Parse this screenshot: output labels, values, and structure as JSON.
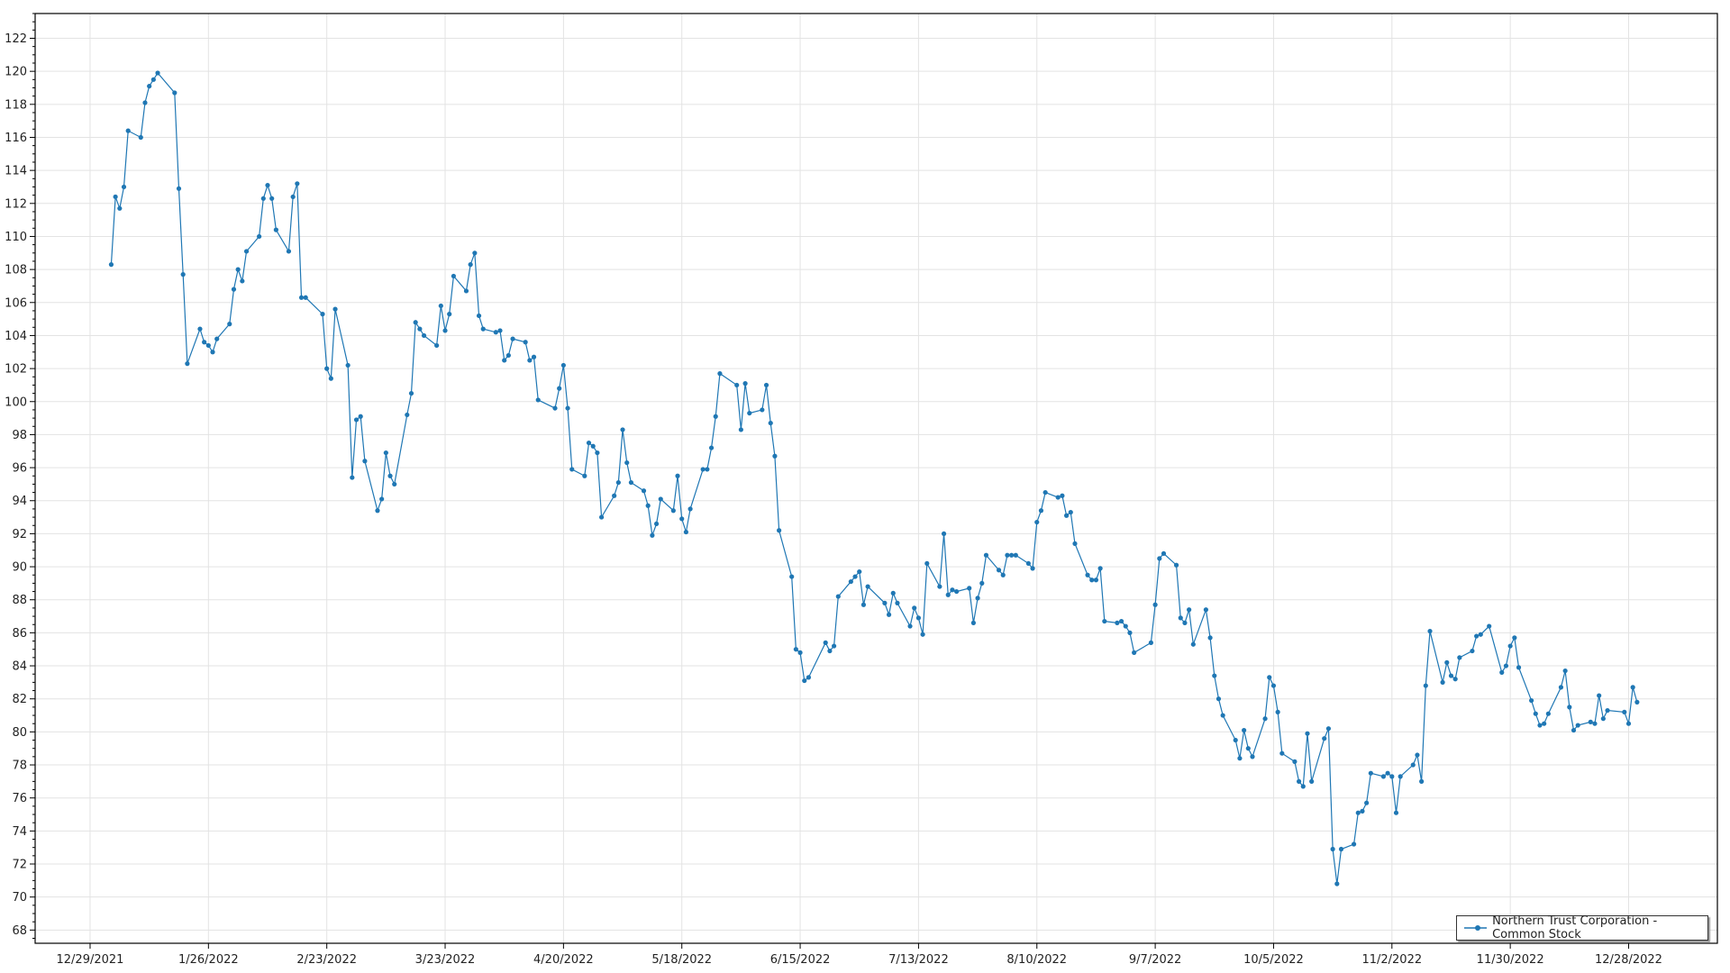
{
  "chart_data": {
    "type": "line",
    "title": "",
    "xlabel": "",
    "ylabel": "",
    "xlim": [
      "2021-12-16",
      "2023-01-18"
    ],
    "ylim": [
      67.2,
      123.5
    ],
    "x_ticks": [
      "12/29/2021",
      "1/26/2022",
      "2/23/2022",
      "3/23/2022",
      "4/20/2022",
      "5/18/2022",
      "6/15/2022",
      "7/13/2022",
      "8/10/2022",
      "9/7/2022",
      "10/5/2022",
      "11/2/2022",
      "11/30/2022",
      "12/28/2022"
    ],
    "y_ticks": [
      68,
      70,
      72,
      74,
      76,
      78,
      80,
      82,
      84,
      86,
      88,
      90,
      92,
      94,
      96,
      98,
      100,
      102,
      104,
      106,
      108,
      110,
      112,
      114,
      116,
      118,
      120,
      122
    ],
    "grid": true,
    "legend_position": "bottom-right",
    "colors": {
      "series": "#1f77b4",
      "grid": "#e3e3e3",
      "axis": "#000000"
    },
    "series": [
      {
        "name": "Northern Trust Corporation - Common Stock",
        "marker": "circle",
        "points": [
          [
            "2022-01-03",
            108.3
          ],
          [
            "2022-01-04",
            112.4
          ],
          [
            "2022-01-05",
            111.7
          ],
          [
            "2022-01-06",
            113.0
          ],
          [
            "2022-01-07",
            116.4
          ],
          [
            "2022-01-10",
            116.0
          ],
          [
            "2022-01-11",
            118.1
          ],
          [
            "2022-01-12",
            119.1
          ],
          [
            "2022-01-13",
            119.5
          ],
          [
            "2022-01-14",
            119.9
          ],
          [
            "2022-01-18",
            118.7
          ],
          [
            "2022-01-19",
            112.9
          ],
          [
            "2022-01-20",
            107.7
          ],
          [
            "2022-01-21",
            102.3
          ],
          [
            "2022-01-24",
            104.4
          ],
          [
            "2022-01-25",
            103.6
          ],
          [
            "2022-01-26",
            103.4
          ],
          [
            "2022-01-27",
            103.0
          ],
          [
            "2022-01-28",
            103.8
          ],
          [
            "2022-01-31",
            104.7
          ],
          [
            "2022-02-01",
            106.8
          ],
          [
            "2022-02-02",
            108.0
          ],
          [
            "2022-02-03",
            107.3
          ],
          [
            "2022-02-04",
            109.1
          ],
          [
            "2022-02-07",
            110.0
          ],
          [
            "2022-02-08",
            112.3
          ],
          [
            "2022-02-09",
            113.1
          ],
          [
            "2022-02-10",
            112.3
          ],
          [
            "2022-02-11",
            110.4
          ],
          [
            "2022-02-14",
            109.1
          ],
          [
            "2022-02-15",
            112.4
          ],
          [
            "2022-02-16",
            113.2
          ],
          [
            "2022-02-17",
            106.3
          ],
          [
            "2022-02-18",
            106.3
          ],
          [
            "2022-02-22",
            105.3
          ],
          [
            "2022-02-23",
            102.0
          ],
          [
            "2022-02-24",
            101.4
          ],
          [
            "2022-02-25",
            105.6
          ],
          [
            "2022-02-28",
            102.2
          ],
          [
            "2022-03-01",
            95.4
          ],
          [
            "2022-03-02",
            98.9
          ],
          [
            "2022-03-03",
            99.1
          ],
          [
            "2022-03-04",
            96.4
          ],
          [
            "2022-03-07",
            93.4
          ],
          [
            "2022-03-08",
            94.1
          ],
          [
            "2022-03-09",
            96.9
          ],
          [
            "2022-03-10",
            95.5
          ],
          [
            "2022-03-11",
            95.0
          ],
          [
            "2022-03-14",
            99.2
          ],
          [
            "2022-03-15",
            100.5
          ],
          [
            "2022-03-16",
            104.8
          ],
          [
            "2022-03-17",
            104.4
          ],
          [
            "2022-03-18",
            104.0
          ],
          [
            "2022-03-21",
            103.4
          ],
          [
            "2022-03-22",
            105.8
          ],
          [
            "2022-03-23",
            104.3
          ],
          [
            "2022-03-24",
            105.3
          ],
          [
            "2022-03-25",
            107.6
          ],
          [
            "2022-03-28",
            106.7
          ],
          [
            "2022-03-29",
            108.3
          ],
          [
            "2022-03-30",
            109.0
          ],
          [
            "2022-03-31",
            105.2
          ],
          [
            "2022-04-01",
            104.4
          ],
          [
            "2022-04-04",
            104.2
          ],
          [
            "2022-04-05",
            104.3
          ],
          [
            "2022-04-06",
            102.5
          ],
          [
            "2022-04-07",
            102.8
          ],
          [
            "2022-04-08",
            103.8
          ],
          [
            "2022-04-11",
            103.6
          ],
          [
            "2022-04-12",
            102.5
          ],
          [
            "2022-04-13",
            102.7
          ],
          [
            "2022-04-14",
            100.1
          ],
          [
            "2022-04-18",
            99.6
          ],
          [
            "2022-04-19",
            100.8
          ],
          [
            "2022-04-20",
            102.2
          ],
          [
            "2022-04-21",
            99.6
          ],
          [
            "2022-04-22",
            95.9
          ],
          [
            "2022-04-25",
            95.5
          ],
          [
            "2022-04-26",
            97.5
          ],
          [
            "2022-04-27",
            97.3
          ],
          [
            "2022-04-28",
            96.9
          ],
          [
            "2022-04-29",
            93.0
          ],
          [
            "2022-05-02",
            94.3
          ],
          [
            "2022-05-03",
            95.1
          ],
          [
            "2022-05-04",
            98.3
          ],
          [
            "2022-05-05",
            96.3
          ],
          [
            "2022-05-06",
            95.1
          ],
          [
            "2022-05-09",
            94.6
          ],
          [
            "2022-05-10",
            93.7
          ],
          [
            "2022-05-11",
            91.9
          ],
          [
            "2022-05-12",
            92.6
          ],
          [
            "2022-05-13",
            94.1
          ],
          [
            "2022-05-16",
            93.4
          ],
          [
            "2022-05-17",
            95.5
          ],
          [
            "2022-05-18",
            92.9
          ],
          [
            "2022-05-19",
            92.1
          ],
          [
            "2022-05-20",
            93.5
          ],
          [
            "2022-05-23",
            95.9
          ],
          [
            "2022-05-24",
            95.9
          ],
          [
            "2022-05-25",
            97.2
          ],
          [
            "2022-05-26",
            99.1
          ],
          [
            "2022-05-27",
            101.7
          ],
          [
            "2022-05-31",
            101.0
          ],
          [
            "2022-06-01",
            98.3
          ],
          [
            "2022-06-02",
            101.1
          ],
          [
            "2022-06-03",
            99.3
          ],
          [
            "2022-06-06",
            99.5
          ],
          [
            "2022-06-07",
            101.0
          ],
          [
            "2022-06-08",
            98.7
          ],
          [
            "2022-06-09",
            96.7
          ],
          [
            "2022-06-10",
            92.2
          ],
          [
            "2022-06-13",
            89.4
          ],
          [
            "2022-06-14",
            85.0
          ],
          [
            "2022-06-15",
            84.8
          ],
          [
            "2022-06-16",
            83.1
          ],
          [
            "2022-06-17",
            83.3
          ],
          [
            "2022-06-21",
            85.4
          ],
          [
            "2022-06-22",
            84.9
          ],
          [
            "2022-06-23",
            85.2
          ],
          [
            "2022-06-24",
            88.2
          ],
          [
            "2022-06-27",
            89.1
          ],
          [
            "2022-06-28",
            89.4
          ],
          [
            "2022-06-29",
            89.7
          ],
          [
            "2022-06-30",
            87.7
          ],
          [
            "2022-07-01",
            88.8
          ],
          [
            "2022-07-05",
            87.8
          ],
          [
            "2022-07-06",
            87.1
          ],
          [
            "2022-07-07",
            88.4
          ],
          [
            "2022-07-08",
            87.8
          ],
          [
            "2022-07-11",
            86.4
          ],
          [
            "2022-07-12",
            87.5
          ],
          [
            "2022-07-13",
            86.9
          ],
          [
            "2022-07-14",
            85.9
          ],
          [
            "2022-07-15",
            90.2
          ],
          [
            "2022-07-18",
            88.8
          ],
          [
            "2022-07-19",
            92.0
          ],
          [
            "2022-07-20",
            88.3
          ],
          [
            "2022-07-21",
            88.6
          ],
          [
            "2022-07-22",
            88.5
          ],
          [
            "2022-07-25",
            88.7
          ],
          [
            "2022-07-26",
            86.6
          ],
          [
            "2022-07-27",
            88.1
          ],
          [
            "2022-07-28",
            89.0
          ],
          [
            "2022-07-29",
            90.7
          ],
          [
            "2022-08-01",
            89.8
          ],
          [
            "2022-08-02",
            89.5
          ],
          [
            "2022-08-03",
            90.7
          ],
          [
            "2022-08-04",
            90.7
          ],
          [
            "2022-08-05",
            90.7
          ],
          [
            "2022-08-08",
            90.2
          ],
          [
            "2022-08-09",
            89.9
          ],
          [
            "2022-08-10",
            92.7
          ],
          [
            "2022-08-11",
            93.4
          ],
          [
            "2022-08-12",
            94.5
          ],
          [
            "2022-08-15",
            94.2
          ],
          [
            "2022-08-16",
            94.3
          ],
          [
            "2022-08-17",
            93.1
          ],
          [
            "2022-08-18",
            93.3
          ],
          [
            "2022-08-19",
            91.4
          ],
          [
            "2022-08-22",
            89.5
          ],
          [
            "2022-08-23",
            89.2
          ],
          [
            "2022-08-24",
            89.2
          ],
          [
            "2022-08-25",
            89.9
          ],
          [
            "2022-08-26",
            86.7
          ],
          [
            "2022-08-29",
            86.6
          ],
          [
            "2022-08-30",
            86.7
          ],
          [
            "2022-08-31",
            86.4
          ],
          [
            "2022-09-01",
            86.0
          ],
          [
            "2022-09-02",
            84.8
          ],
          [
            "2022-09-06",
            85.4
          ],
          [
            "2022-09-07",
            87.7
          ],
          [
            "2022-09-08",
            90.5
          ],
          [
            "2022-09-09",
            90.8
          ],
          [
            "2022-09-12",
            90.1
          ],
          [
            "2022-09-13",
            86.9
          ],
          [
            "2022-09-14",
            86.6
          ],
          [
            "2022-09-15",
            87.4
          ],
          [
            "2022-09-16",
            85.3
          ],
          [
            "2022-09-19",
            87.4
          ],
          [
            "2022-09-20",
            85.7
          ],
          [
            "2022-09-21",
            83.4
          ],
          [
            "2022-09-22",
            82.0
          ],
          [
            "2022-09-23",
            81.0
          ],
          [
            "2022-09-26",
            79.5
          ],
          [
            "2022-09-27",
            78.4
          ],
          [
            "2022-09-28",
            80.1
          ],
          [
            "2022-09-29",
            79.0
          ],
          [
            "2022-09-30",
            78.5
          ],
          [
            "2022-10-03",
            80.8
          ],
          [
            "2022-10-04",
            83.3
          ],
          [
            "2022-10-05",
            82.8
          ],
          [
            "2022-10-06",
            81.2
          ],
          [
            "2022-10-07",
            78.7
          ],
          [
            "2022-10-10",
            78.2
          ],
          [
            "2022-10-11",
            77.0
          ],
          [
            "2022-10-12",
            76.7
          ],
          [
            "2022-10-13",
            79.9
          ],
          [
            "2022-10-14",
            77.0
          ],
          [
            "2022-10-17",
            79.6
          ],
          [
            "2022-10-18",
            80.2
          ],
          [
            "2022-10-19",
            72.9
          ],
          [
            "2022-10-20",
            70.8
          ],
          [
            "2022-10-21",
            72.9
          ],
          [
            "2022-10-24",
            73.2
          ],
          [
            "2022-10-25",
            75.1
          ],
          [
            "2022-10-26",
            75.2
          ],
          [
            "2022-10-27",
            75.7
          ],
          [
            "2022-10-28",
            77.5
          ],
          [
            "2022-10-31",
            77.3
          ],
          [
            "2022-11-01",
            77.5
          ],
          [
            "2022-11-02",
            77.3
          ],
          [
            "2022-11-03",
            75.1
          ],
          [
            "2022-11-04",
            77.3
          ],
          [
            "2022-11-07",
            78.0
          ],
          [
            "2022-11-08",
            78.6
          ],
          [
            "2022-11-09",
            77.0
          ],
          [
            "2022-11-10",
            82.8
          ],
          [
            "2022-11-11",
            86.1
          ],
          [
            "2022-11-14",
            83.0
          ],
          [
            "2022-11-15",
            84.2
          ],
          [
            "2022-11-16",
            83.4
          ],
          [
            "2022-11-17",
            83.2
          ],
          [
            "2022-11-18",
            84.5
          ],
          [
            "2022-11-21",
            84.9
          ],
          [
            "2022-11-22",
            85.8
          ],
          [
            "2022-11-23",
            85.9
          ],
          [
            "2022-11-25",
            86.4
          ],
          [
            "2022-11-28",
            83.6
          ],
          [
            "2022-11-29",
            84.0
          ],
          [
            "2022-11-30",
            85.2
          ],
          [
            "2022-12-01",
            85.7
          ],
          [
            "2022-12-02",
            83.9
          ],
          [
            "2022-12-05",
            81.9
          ],
          [
            "2022-12-06",
            81.1
          ],
          [
            "2022-12-07",
            80.4
          ],
          [
            "2022-12-08",
            80.5
          ],
          [
            "2022-12-09",
            81.1
          ],
          [
            "2022-12-12",
            82.7
          ],
          [
            "2022-12-13",
            83.7
          ],
          [
            "2022-12-14",
            81.5
          ],
          [
            "2022-12-15",
            80.1
          ],
          [
            "2022-12-16",
            80.4
          ],
          [
            "2022-12-19",
            80.6
          ],
          [
            "2022-12-20",
            80.5
          ],
          [
            "2022-12-21",
            82.2
          ],
          [
            "2022-12-22",
            80.8
          ],
          [
            "2022-12-23",
            81.3
          ],
          [
            "2022-12-27",
            81.2
          ],
          [
            "2022-12-28",
            80.5
          ],
          [
            "2022-12-29",
            82.7
          ],
          [
            "2022-12-30",
            81.8
          ]
        ]
      }
    ]
  }
}
